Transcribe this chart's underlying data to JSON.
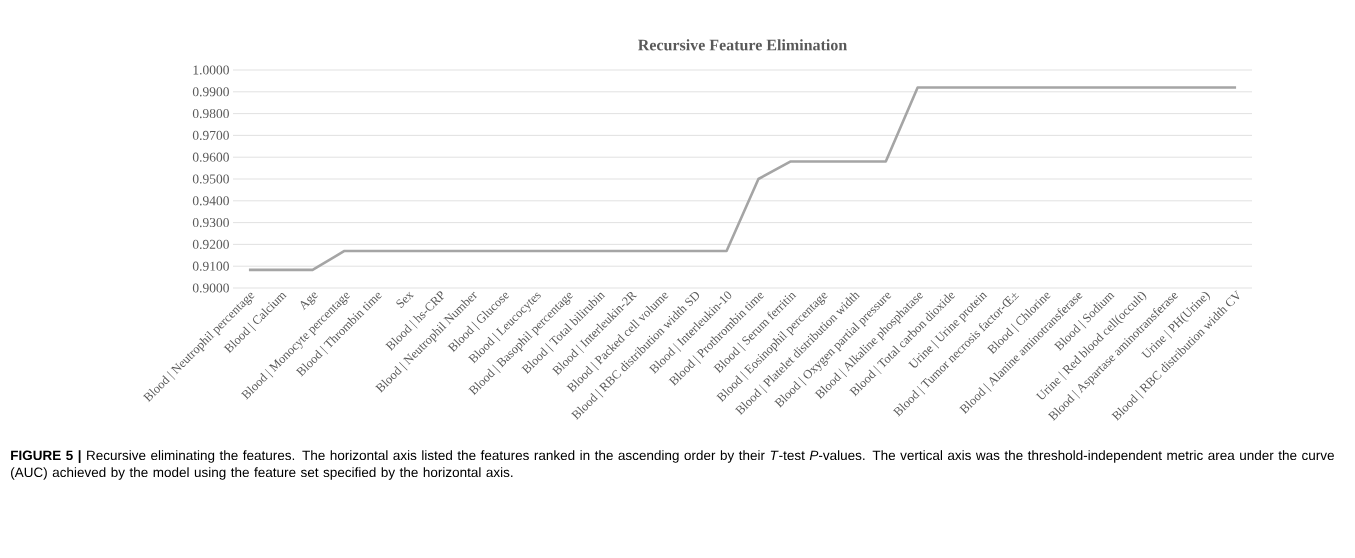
{
  "chart_data": {
    "type": "line",
    "title": "Recursive Feature Elimination",
    "categories": [
      "Blood | Neutrophil percentage",
      "Blood | Calcium",
      "Age",
      "Blood | Monocyte percentage",
      "Blood | Thrombin time",
      "Sex",
      "Blood | hs-CRP",
      "Blood | Neutrophil Number",
      "Blood | Glucose",
      "Blood | Leucocytes",
      "Blood | Basophil percentage",
      "Blood | Total bilirubin",
      "Blood | Interleukin-2R",
      "Blood | Packed cell volume",
      "Blood | RBC distribution width SD",
      "Blood | Interleukin-10",
      "Blood | Prothrombin time",
      "Blood | Serum ferritin",
      "Blood | Eosinophil percentage",
      "Blood | Platelet distribution width",
      "Blood | Oxygen partial pressure",
      "Blood | Alkaline phosphatase",
      "Blood | Total carbon dioxide",
      "Urine | Urine protein",
      "Blood | Tumor necrosis factor-Œ±",
      "Blood | Chlorine",
      "Blood | Alanine aminotransferase",
      "Blood | Sodium",
      "Urine | Red blood cell(occult)",
      "Blood | Aspartase aminotransferase",
      "Urine | PH(Urine)",
      "Blood | RBC distribution width CV"
    ],
    "values": [
      0.9083,
      0.9083,
      0.9083,
      0.917,
      0.917,
      0.917,
      0.917,
      0.917,
      0.917,
      0.917,
      0.917,
      0.917,
      0.917,
      0.917,
      0.917,
      0.917,
      0.95,
      0.958,
      0.958,
      0.958,
      0.958,
      0.992,
      0.992,
      0.992,
      0.992,
      0.992,
      0.992,
      0.992,
      0.992,
      0.992,
      0.992,
      0.992
    ],
    "color": "#a5a5a5",
    "ylim": [
      0.9,
      1.0
    ],
    "yticks": [
      {
        "value": 0.9,
        "label": "0.9000"
      },
      {
        "value": 0.91,
        "label": "0.9100"
      },
      {
        "value": 0.92,
        "label": "0.9200"
      },
      {
        "value": 0.93,
        "label": "0.9300"
      },
      {
        "value": 0.94,
        "label": "0.9400"
      },
      {
        "value": 0.95,
        "label": "0.9500"
      },
      {
        "value": 0.96,
        "label": "0.9600"
      },
      {
        "value": 0.97,
        "label": "0.9700"
      },
      {
        "value": 0.98,
        "label": "0.9800"
      },
      {
        "value": 0.99,
        "label": "0.9900"
      },
      {
        "value": 1.0,
        "label": "1.0000"
      }
    ],
    "grid": "y",
    "marker": "none",
    "line_style": "solid",
    "annotations": [
      "**FIGURE 5 |** Recursive eliminating the features. The horizontal axis listed the features ranked in the ascending order by their *T*-test *P*-values. The vertical axis was the threshold-independent metric area under the curve (AUC) achieved by the model using the feature set specified by the horizontal axis."
    ]
  }
}
